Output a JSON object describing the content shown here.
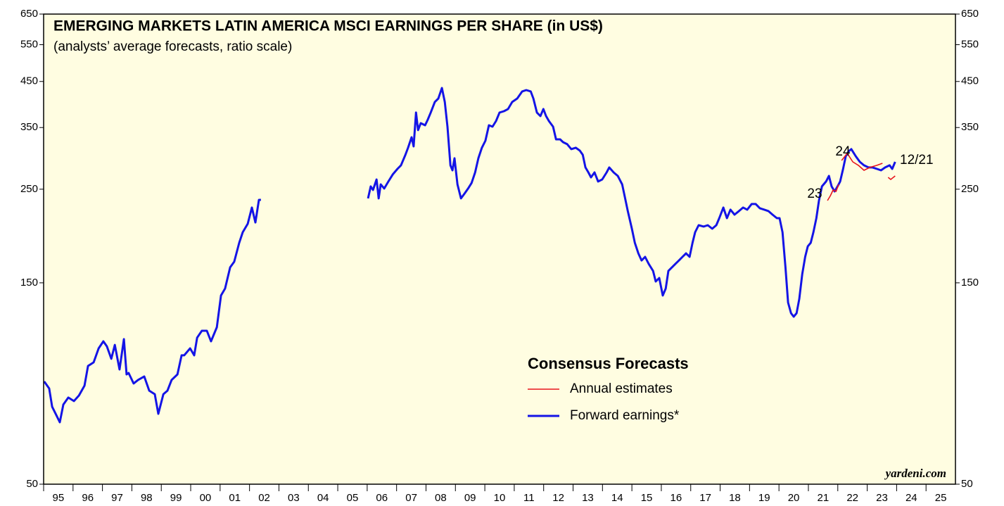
{
  "chart_data": {
    "type": "line",
    "title": "EMERGING MARKETS LATIN AMERICA MSCI EARNINGS PER SHARE (in US$)",
    "subtitle": "(analysts’ average forecasts, ratio scale)",
    "log_scale": true,
    "background": "#fffde1",
    "ylim": [
      50,
      650
    ],
    "yticks": [
      50,
      150,
      250,
      350,
      450,
      550,
      650
    ],
    "xlim": [
      1995,
      2026
    ],
    "xticks": [
      {
        "value": 1995,
        "label": "95"
      },
      {
        "value": 1996,
        "label": "96"
      },
      {
        "value": 1997,
        "label": "97"
      },
      {
        "value": 1998,
        "label": "98"
      },
      {
        "value": 1999,
        "label": "99"
      },
      {
        "value": 2000,
        "label": "00"
      },
      {
        "value": 2001,
        "label": "01"
      },
      {
        "value": 2002,
        "label": "02"
      },
      {
        "value": 2003,
        "label": "03"
      },
      {
        "value": 2004,
        "label": "04"
      },
      {
        "value": 2005,
        "label": "05"
      },
      {
        "value": 2006,
        "label": "06"
      },
      {
        "value": 2007,
        "label": "07"
      },
      {
        "value": 2008,
        "label": "08"
      },
      {
        "value": 2009,
        "label": "09"
      },
      {
        "value": 2010,
        "label": "10"
      },
      {
        "value": 2011,
        "label": "11"
      },
      {
        "value": 2012,
        "label": "12"
      },
      {
        "value": 2013,
        "label": "13"
      },
      {
        "value": 2014,
        "label": "14"
      },
      {
        "value": 2015,
        "label": "15"
      },
      {
        "value": 2016,
        "label": "16"
      },
      {
        "value": 2017,
        "label": "17"
      },
      {
        "value": 2018,
        "label": "18"
      },
      {
        "value": 2019,
        "label": "19"
      },
      {
        "value": 2020,
        "label": "20"
      },
      {
        "value": 2021,
        "label": "21"
      },
      {
        "value": 2022,
        "label": "22"
      },
      {
        "value": 2023,
        "label": "23"
      },
      {
        "value": 2024,
        "label": "24"
      },
      {
        "value": 2025,
        "label": "25"
      }
    ],
    "legend_title": "Consensus Forecasts",
    "legend": "lower center",
    "series": [
      {
        "name": "Annual estimates",
        "color": "#e8141c",
        "x": [
          2021.65,
          2021.75,
          2021.84,
          2021.94,
          2022.03,
          null,
          2022.13,
          2022.32,
          2022.51,
          2022.7,
          2022.89,
          2023.09,
          2023.33,
          2023.52,
          null,
          2023.71,
          2023.8,
          2023.95
        ],
        "values": [
          235.0,
          241.4,
          249.0,
          247.0,
          256.7,
          null,
          292.5,
          304.0,
          290.2,
          284.8,
          277.2,
          281.5,
          284.8,
          288.0,
          null,
          266.7,
          263.7,
          268.8
        ]
      },
      {
        "name": "Forward earnings*",
        "color": "#1414e6",
        "x": [
          1995.02,
          1995.19,
          1995.29,
          1995.43,
          1995.55,
          1995.67,
          1995.84,
          1996.03,
          1996.2,
          1996.39,
          1996.51,
          1996.7,
          1996.87,
          1997.03,
          1997.15,
          1997.3,
          1997.42,
          1997.58,
          1997.73,
          1997.82,
          1997.89,
          1998.06,
          1998.21,
          1998.42,
          1998.59,
          1998.78,
          1998.9,
          1999.07,
          1999.21,
          1999.35,
          1999.55,
          1999.69,
          1999.78,
          1999.98,
          2000.12,
          2000.22,
          2000.38,
          2000.55,
          2000.69,
          2000.89,
          2001.03,
          2001.17,
          2001.34,
          2001.48,
          2001.65,
          2001.77,
          2001.94,
          2002.08,
          2002.2,
          2002.32,
          2002.39,
          null,
          2006.03,
          2006.12,
          2006.2,
          2006.32,
          2006.39,
          2006.46,
          2006.58,
          2006.72,
          2006.87,
          2007.03,
          2007.15,
          2007.3,
          2007.39,
          2007.51,
          2007.58,
          2007.66,
          2007.73,
          2007.82,
          2007.97,
          2008.06,
          2008.16,
          2008.3,
          2008.42,
          2008.54,
          2008.64,
          2008.73,
          2008.83,
          2008.9,
          2008.97,
          2009.07,
          2009.19,
          2009.31,
          2009.43,
          2009.55,
          2009.67,
          2009.78,
          2009.9,
          2010.02,
          2010.14,
          2010.26,
          2010.38,
          2010.5,
          2010.65,
          2010.79,
          2010.93,
          2011.1,
          2011.27,
          2011.41,
          2011.56,
          2011.65,
          2011.77,
          2011.89,
          2011.99,
          2012.08,
          2012.18,
          2012.32,
          2012.42,
          2012.56,
          2012.66,
          2012.8,
          2012.94,
          2013.09,
          2013.23,
          2013.33,
          2013.42,
          2013.52,
          2013.61,
          2013.73,
          2013.85,
          2013.99,
          2014.14,
          2014.23,
          2014.38,
          2014.52,
          2014.67,
          2014.76,
          2014.86,
          2015.0,
          2015.1,
          2015.22,
          2015.33,
          2015.45,
          2015.57,
          2015.72,
          2015.81,
          2015.93,
          2016.05,
          2016.15,
          2016.24,
          2016.36,
          2016.48,
          2016.6,
          2016.72,
          2016.84,
          2016.96,
          2017.06,
          2017.15,
          2017.27,
          2017.44,
          2017.58,
          2017.73,
          2017.87,
          2017.97,
          2018.11,
          2018.23,
          2018.35,
          2018.49,
          2018.64,
          2018.78,
          2018.92,
          2019.07,
          2019.21,
          2019.35,
          2019.5,
          2019.64,
          2019.78,
          2019.93,
          2020.02,
          2020.12,
          2020.22,
          2020.31,
          2020.41,
          2020.5,
          2020.6,
          2020.69,
          2020.79,
          2020.89,
          2020.98,
          2021.08,
          2021.17,
          2021.27,
          2021.36,
          2021.46,
          2021.6,
          2021.7,
          2021.79,
          2021.89,
          2021.99,
          2022.08,
          2022.18,
          2022.27,
          2022.37,
          2022.46,
          2022.61,
          2022.75,
          2022.89,
          2023.04,
          2023.18,
          2023.33,
          2023.47,
          2023.61,
          2023.76,
          2023.85,
          2023.95
        ],
        "values": [
          87.6,
          84.3,
          76.3,
          72.9,
          70.1,
          77.2,
          80.2,
          78.7,
          81.1,
          85.6,
          95.3,
          97.2,
          104.9,
          109.0,
          106.1,
          99.1,
          106.9,
          93.5,
          110.3,
          91.0,
          91.7,
          86.6,
          88.3,
          90.0,
          83.3,
          81.7,
          73.4,
          81.7,
          83.3,
          88.3,
          91.0,
          101.0,
          101.0,
          104.9,
          101.0,
          111.2,
          115.5,
          115.5,
          109.0,
          117.7,
          140.0,
          145.4,
          163.2,
          168.3,
          186.6,
          197.7,
          207.0,
          226.2,
          208.5,
          235.9,
          235.9,
          null,
          237.8,
          253.8,
          249.0,
          263.7,
          237.8,
          256.7,
          250.9,
          260.7,
          270.9,
          279.3,
          284.8,
          301.6,
          313.5,
          332.0,
          315.8,
          379.8,
          345.1,
          358.5,
          354.4,
          365.4,
          379.8,
          402.3,
          410.0,
          434.4,
          402.3,
          351.7,
          284.8,
          277.2,
          295.9,
          256.7,
          237.8,
          244.2,
          250.9,
          258.7,
          274.0,
          295.9,
          313.5,
          325.7,
          354.4,
          351.7,
          362.6,
          379.8,
          382.6,
          387.2,
          402.3,
          410.0,
          426.2,
          429.4,
          426.2,
          410.0,
          379.8,
          372.6,
          387.2,
          372.6,
          362.6,
          351.7,
          328.2,
          328.2,
          323.2,
          319.6,
          311.1,
          313.5,
          308.6,
          301.6,
          281.5,
          274.0,
          266.7,
          274.0,
          260.7,
          263.7,
          274.0,
          281.5,
          274.0,
          268.8,
          256.7,
          239.6,
          221.9,
          201.5,
          186.6,
          176.2,
          169.5,
          172.8,
          166.4,
          160.1,
          151.1,
          154.0,
          140.0,
          145.4,
          160.1,
          163.2,
          166.4,
          169.5,
          172.8,
          176.2,
          172.8,
          186.6,
          197.7,
          205.4,
          203.9,
          205.4,
          201.5,
          205.4,
          213.5,
          226.2,
          213.5,
          223.6,
          217.6,
          221.9,
          226.2,
          223.6,
          230.6,
          230.6,
          225.3,
          223.6,
          221.9,
          217.6,
          213.5,
          213.5,
          197.7,
          163.2,
          134.7,
          127.1,
          124.7,
          127.1,
          137.3,
          157.1,
          172.8,
          183.0,
          186.6,
          197.7,
          213.5,
          235.0,
          253.8,
          260.7,
          268.8,
          253.8,
          247.0,
          253.8,
          260.7,
          279.3,
          299.3,
          307.4,
          311.1,
          299.3,
          290.2,
          284.8,
          281.5,
          281.5,
          279.3,
          277.2,
          281.5,
          284.8,
          279.3,
          290.2
        ]
      }
    ],
    "annotations": [
      "23",
      "24",
      "12/21"
    ],
    "source": "yardeni.com"
  }
}
